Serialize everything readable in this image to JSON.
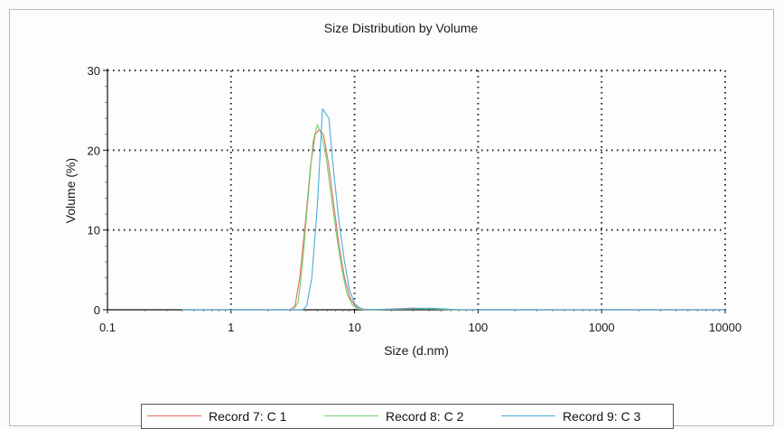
{
  "chart_data": {
    "type": "line",
    "title": "Size Distribution by Volume",
    "xlabel": "Size (d.nm)",
    "ylabel": "Volume (%)",
    "xscale": "log",
    "xlim": [
      0.1,
      10000
    ],
    "ylim": [
      0,
      30
    ],
    "x_ticks": [
      "0.1",
      "1",
      "10",
      "100",
      "1000",
      "10000"
    ],
    "y_ticks": [
      "0",
      "10",
      "20",
      "30"
    ],
    "grid": true,
    "legend_position": "bottom",
    "series": [
      {
        "name": "Record 7: C 1",
        "color": "#e06a5a",
        "points": [
          [
            0.4,
            0
          ],
          [
            3.0,
            0
          ],
          [
            3.3,
            0.5
          ],
          [
            3.6,
            4
          ],
          [
            4.0,
            11
          ],
          [
            4.4,
            18
          ],
          [
            4.8,
            22
          ],
          [
            5.2,
            22.6
          ],
          [
            5.6,
            22
          ],
          [
            6.2,
            18
          ],
          [
            6.8,
            13
          ],
          [
            7.5,
            8
          ],
          [
            8.3,
            4
          ],
          [
            9.2,
            1.5
          ],
          [
            10.2,
            0.4
          ],
          [
            11.5,
            0.1
          ],
          [
            13,
            0
          ],
          [
            30,
            0.2
          ],
          [
            45,
            0.1
          ],
          [
            60,
            0
          ],
          [
            10000,
            0
          ]
        ]
      },
      {
        "name": "Record 8: C 2",
        "color": "#6fcf6f",
        "points": [
          [
            0.4,
            0
          ],
          [
            3.2,
            0
          ],
          [
            3.5,
            1
          ],
          [
            3.8,
            6
          ],
          [
            4.2,
            14
          ],
          [
            4.6,
            21
          ],
          [
            5.0,
            23.2
          ],
          [
            5.4,
            22
          ],
          [
            5.9,
            19
          ],
          [
            6.5,
            14
          ],
          [
            7.2,
            9
          ],
          [
            7.9,
            5
          ],
          [
            8.7,
            2
          ],
          [
            9.6,
            0.6
          ],
          [
            10.6,
            0.1
          ],
          [
            12,
            0
          ],
          [
            30,
            0.1
          ],
          [
            45,
            0.1
          ],
          [
            60,
            0
          ],
          [
            10000,
            0
          ]
        ]
      },
      {
        "name": "Record 9: C 3",
        "color": "#4aaed8",
        "points": [
          [
            0.4,
            0
          ],
          [
            3.8,
            0
          ],
          [
            4.1,
            0.5
          ],
          [
            4.5,
            4
          ],
          [
            5.0,
            13
          ],
          [
            5.5,
            25.2
          ],
          [
            6.2,
            24
          ],
          [
            6.8,
            17
          ],
          [
            7.5,
            11
          ],
          [
            8.3,
            6
          ],
          [
            9.1,
            2.5
          ],
          [
            10.0,
            0.8
          ],
          [
            11,
            0.2
          ],
          [
            12,
            0
          ],
          [
            25,
            0.1
          ],
          [
            40,
            0.2
          ],
          [
            55,
            0.1
          ],
          [
            70,
            0
          ],
          [
            10000,
            0
          ]
        ]
      }
    ]
  }
}
